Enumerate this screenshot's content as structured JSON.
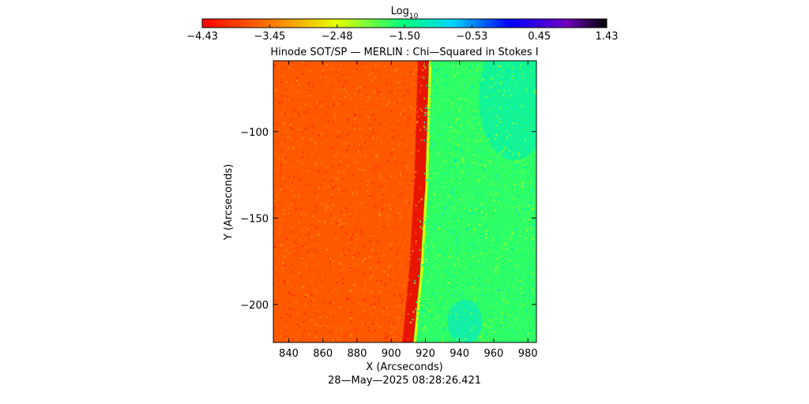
{
  "chart_data": {
    "type": "heatmap",
    "title": "Hinode SOT/SP — MERLIN : Chi—Squared in Stokes I",
    "xlabel": "X (Arcseconds)",
    "ylabel": "Y (Arcseconds)",
    "footer": "28—May—2025 08:28:26.421",
    "colorbar": {
      "label_base": "Log",
      "label_sub": "10",
      "ticks": [
        "−4.43",
        "−3.45",
        "−2.48",
        "−1.50",
        "−0.53",
        "0.45",
        "1.43"
      ],
      "range": [
        -4.43,
        1.43
      ]
    },
    "xlim": [
      831,
      985
    ],
    "ylim": [
      -222,
      -59
    ],
    "xticks": [
      840,
      860,
      880,
      900,
      920,
      940,
      960,
      980
    ],
    "xtick_labels": [
      "840",
      "860",
      "880",
      "900",
      "920",
      "940",
      "960",
      "980"
    ],
    "yticks": [
      -100,
      -150,
      -200
    ],
    "ytick_labels": [
      "−100",
      "−150",
      "−200"
    ],
    "limb": [
      {
        "x": 922,
        "y": -59
      },
      {
        "x": 920,
        "y": -130
      },
      {
        "x": 917,
        "y": -180
      },
      {
        "x": 913,
        "y": -222
      }
    ],
    "regions": [
      {
        "name": "disk",
        "log_value": -3.7
      },
      {
        "name": "off-limb",
        "log_value": -1.7
      },
      {
        "name": "off-limb-upper-right",
        "log_value": -1.2
      },
      {
        "name": "off-limb-lower",
        "log_value": -1.0
      }
    ]
  }
}
